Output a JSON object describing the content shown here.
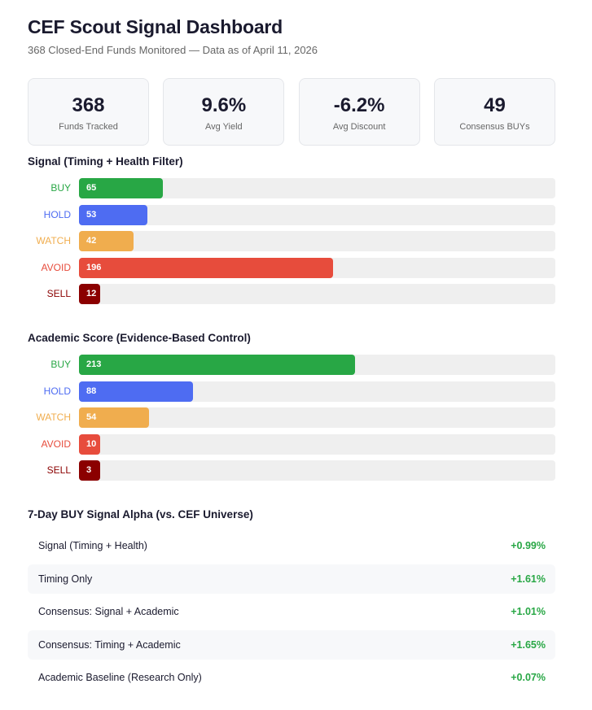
{
  "header": {
    "title": "CEF Scout Signal Dashboard",
    "subtitle": "368 Closed-End Funds Monitored — Data as of April 11, 2026"
  },
  "stats": [
    {
      "value": "368",
      "label": "Funds Tracked"
    },
    {
      "value": "9.6%",
      "label": "Avg Yield"
    },
    {
      "value": "-6.2%",
      "label": "Avg Discount"
    },
    {
      "value": "49",
      "label": "Consensus BUYs"
    }
  ],
  "colors": {
    "BUY": "#28a745",
    "HOLD": "#4e6cf2",
    "WATCH": "#f0ad4e",
    "AVOID": "#e74c3c",
    "SELL": "#8b0000",
    "positive": "#28a745"
  },
  "chart_data": [
    {
      "type": "bar",
      "orientation": "horizontal",
      "title": "Signal (Timing + Health Filter)",
      "categories": [
        "BUY",
        "HOLD",
        "WATCH",
        "AVOID",
        "SELL"
      ],
      "values": [
        65,
        53,
        42,
        196,
        12
      ],
      "xlim": [
        0,
        368
      ]
    },
    {
      "type": "bar",
      "orientation": "horizontal",
      "title": "Academic Score (Evidence-Based Control)",
      "categories": [
        "BUY",
        "HOLD",
        "WATCH",
        "AVOID",
        "SELL"
      ],
      "values": [
        213,
        88,
        54,
        10,
        3
      ],
      "xlim": [
        0,
        368
      ]
    },
    {
      "type": "table",
      "title": "7-Day BUY Signal Alpha (vs. CEF Universe)",
      "rows": [
        {
          "name": "Signal (Timing + Health)",
          "value": "+0.99%"
        },
        {
          "name": "Timing Only",
          "value": "+1.61%"
        },
        {
          "name": "Consensus: Signal + Academic",
          "value": "+1.01%"
        },
        {
          "name": "Consensus: Timing + Academic",
          "value": "+1.65%"
        },
        {
          "name": "Academic Baseline (Research Only)",
          "value": "+0.07%"
        }
      ]
    }
  ]
}
